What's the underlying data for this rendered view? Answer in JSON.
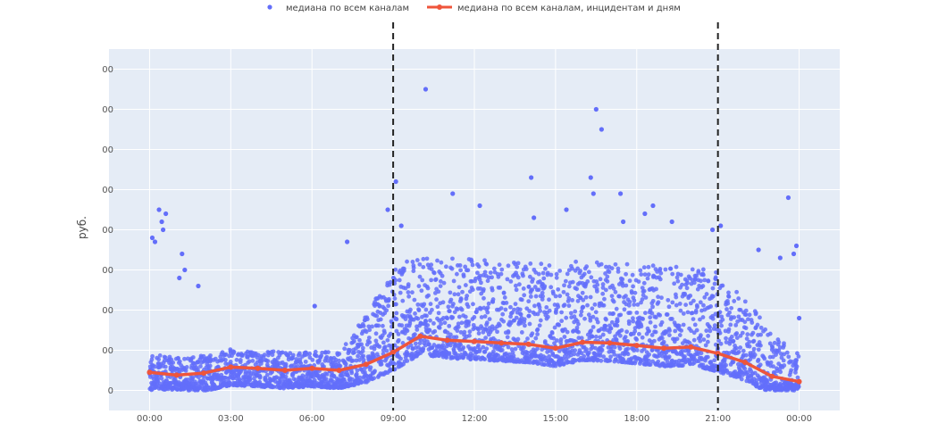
{
  "chart_data": {
    "type": "scatter",
    "ylabel": "руб.",
    "xlabel": "",
    "x_ticks": [
      "00:00",
      "03:00",
      "06:00",
      "09:00",
      "12:00",
      "15:00",
      "18:00",
      "21:00",
      "00:00"
    ],
    "y_ticks": [
      "0",
      "00",
      "00",
      "00",
      "00",
      "00",
      "00",
      "00",
      "00"
    ],
    "x_range_hours": [
      -1.5,
      25.5
    ],
    "y_range": [
      -0.5,
      8.5
    ],
    "grid": true,
    "legend": {
      "placement": "top-center",
      "items": [
        {
          "label": "медиана по всем каналам",
          "marker": "dot"
        },
        {
          "label": "медиана по всем каналам, инцидентам и дням",
          "marker": "line"
        }
      ]
    },
    "vlines_hours": [
      9,
      21
    ],
    "series": [
      {
        "name": "медиана по всем каналам",
        "kind": "scatter",
        "color": "#636efa",
        "outliers": [
          {
            "x": 0.1,
            "y": 3.8
          },
          {
            "x": 0.2,
            "y": 3.7
          },
          {
            "x": 0.35,
            "y": 4.5
          },
          {
            "x": 0.45,
            "y": 4.2
          },
          {
            "x": 0.6,
            "y": 4.4
          },
          {
            "x": 0.5,
            "y": 4.0
          },
          {
            "x": 1.2,
            "y": 3.4
          },
          {
            "x": 1.3,
            "y": 3.0
          },
          {
            "x": 1.1,
            "y": 2.8
          },
          {
            "x": 1.8,
            "y": 2.6
          },
          {
            "x": 6.1,
            "y": 2.1
          },
          {
            "x": 7.3,
            "y": 3.7
          },
          {
            "x": 8.8,
            "y": 4.5
          },
          {
            "x": 9.1,
            "y": 5.2
          },
          {
            "x": 9.3,
            "y": 4.1
          },
          {
            "x": 10.2,
            "y": 7.5
          },
          {
            "x": 11.2,
            "y": 4.9
          },
          {
            "x": 12.2,
            "y": 4.6
          },
          {
            "x": 14.1,
            "y": 5.3
          },
          {
            "x": 14.2,
            "y": 4.3
          },
          {
            "x": 15.4,
            "y": 4.5
          },
          {
            "x": 16.3,
            "y": 5.3
          },
          {
            "x": 16.4,
            "y": 4.9
          },
          {
            "x": 16.5,
            "y": 7.0
          },
          {
            "x": 16.7,
            "y": 6.5
          },
          {
            "x": 17.4,
            "y": 4.9
          },
          {
            "x": 17.5,
            "y": 4.2
          },
          {
            "x": 18.3,
            "y": 4.4
          },
          {
            "x": 18.6,
            "y": 4.6
          },
          {
            "x": 19.3,
            "y": 4.2
          },
          {
            "x": 20.8,
            "y": 4.0
          },
          {
            "x": 21.1,
            "y": 4.1
          },
          {
            "x": 22.5,
            "y": 3.5
          },
          {
            "x": 23.3,
            "y": 3.3
          },
          {
            "x": 23.6,
            "y": 4.8
          },
          {
            "x": 23.8,
            "y": 3.4
          },
          {
            "x": 23.9,
            "y": 3.6
          },
          {
            "x": 24.0,
            "y": 1.8
          }
        ]
      },
      {
        "name": "медиана по всем каналам, инцидентам и дням",
        "kind": "line",
        "color": "#ef553b",
        "points": [
          {
            "x": 0,
            "y": 0.45
          },
          {
            "x": 1,
            "y": 0.38
          },
          {
            "x": 2,
            "y": 0.43
          },
          {
            "x": 3,
            "y": 0.58
          },
          {
            "x": 4,
            "y": 0.55
          },
          {
            "x": 5,
            "y": 0.5
          },
          {
            "x": 6,
            "y": 0.55
          },
          {
            "x": 7,
            "y": 0.5
          },
          {
            "x": 8,
            "y": 0.65
          },
          {
            "x": 9,
            "y": 0.95
          },
          {
            "x": 10,
            "y": 1.35
          },
          {
            "x": 11,
            "y": 1.25
          },
          {
            "x": 12,
            "y": 1.22
          },
          {
            "x": 13,
            "y": 1.18
          },
          {
            "x": 14,
            "y": 1.15
          },
          {
            "x": 15,
            "y": 1.05
          },
          {
            "x": 16,
            "y": 1.2
          },
          {
            "x": 17,
            "y": 1.18
          },
          {
            "x": 18,
            "y": 1.12
          },
          {
            "x": 19,
            "y": 1.05
          },
          {
            "x": 20,
            "y": 1.08
          },
          {
            "x": 21,
            "y": 0.92
          },
          {
            "x": 22,
            "y": 0.7
          },
          {
            "x": 23,
            "y": 0.35
          },
          {
            "x": 24,
            "y": 0.22
          }
        ]
      }
    ]
  }
}
